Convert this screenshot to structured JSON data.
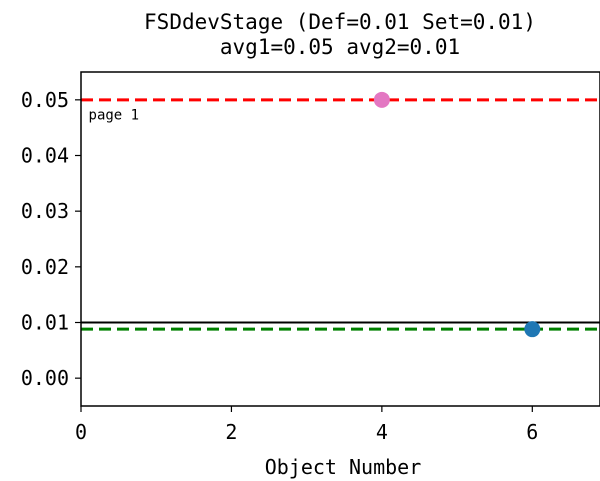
{
  "chart_data": {
    "type": "scatter",
    "title": "FSDdevStage (Def=0.01 Set=0.01)",
    "subtitle": "avg1=0.05 avg2=0.01",
    "xlabel": "Object Number",
    "ylabel": "",
    "xlim": [
      0,
      6.9
    ],
    "ylim": [
      -0.005,
      0.055
    ],
    "x_ticks": [
      0,
      2,
      4,
      6
    ],
    "x_tick_labels": [
      "0",
      "2",
      "4",
      "6"
    ],
    "y_ticks": [
      0.0,
      0.01,
      0.02,
      0.03,
      0.04,
      0.05
    ],
    "y_tick_labels": [
      "0.00",
      "0.01",
      "0.02",
      "0.03",
      "0.04",
      "0.05"
    ],
    "grid": false,
    "points": [
      {
        "x": 4,
        "y": 0.05,
        "color": "#e377c2"
      },
      {
        "x": 6,
        "y": 0.0088,
        "color": "#1f77b4"
      }
    ],
    "hlines": [
      {
        "y": 0.05,
        "color": "#ff0000",
        "style": "dashed"
      },
      {
        "y": 0.0088,
        "color": "#008000",
        "style": "dashed"
      },
      {
        "y": 0.01,
        "color": "#000000",
        "style": "solid"
      }
    ],
    "annotations": [
      {
        "text": "page 1",
        "x": 0.1,
        "y": 0.0465
      }
    ]
  }
}
